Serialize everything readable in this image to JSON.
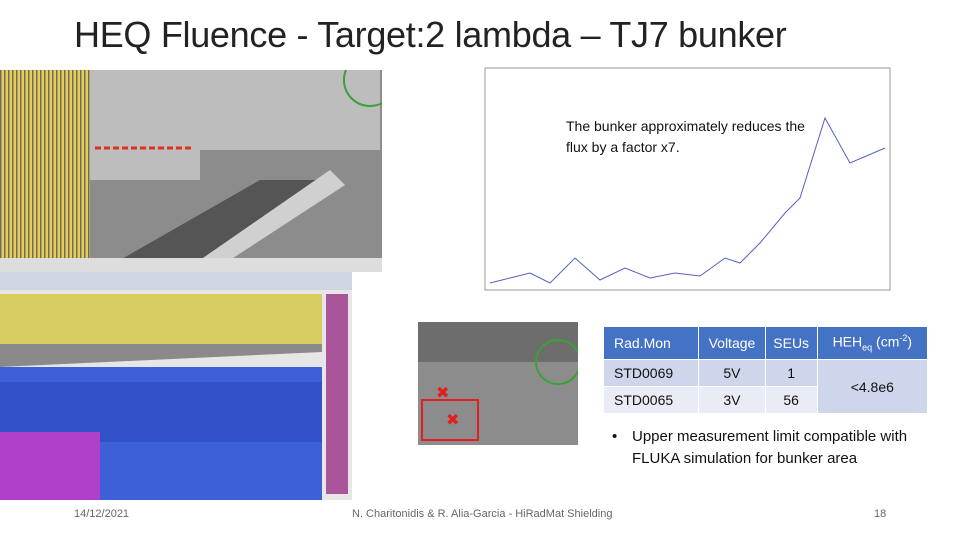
{
  "header": {
    "title": "HEQ Fluence - Target:2 lambda – TJ7 bunker"
  },
  "annotation": "The bunker approximately reduces the flux by a factor x7.",
  "table": {
    "columns": [
      "Rad.Mon",
      "Voltage",
      "SEUs",
      {
        "main": "HEH",
        "sub": "eq",
        "unit": " (cm",
        "sup": "-2",
        "close": ")"
      }
    ],
    "rows": [
      [
        "STD0069",
        "5V",
        "1",
        "<4.8e6"
      ],
      [
        "STD0065",
        "3V",
        "56"
      ]
    ]
  },
  "bullet": "Upper measurement limit compatible with FLUKA simulation for bunker area",
  "footer": {
    "date": "14/12/2021",
    "authors": "N. Charitonidis & R. Alia-Garcia - HiRadMat Shielding",
    "page": "18"
  }
}
